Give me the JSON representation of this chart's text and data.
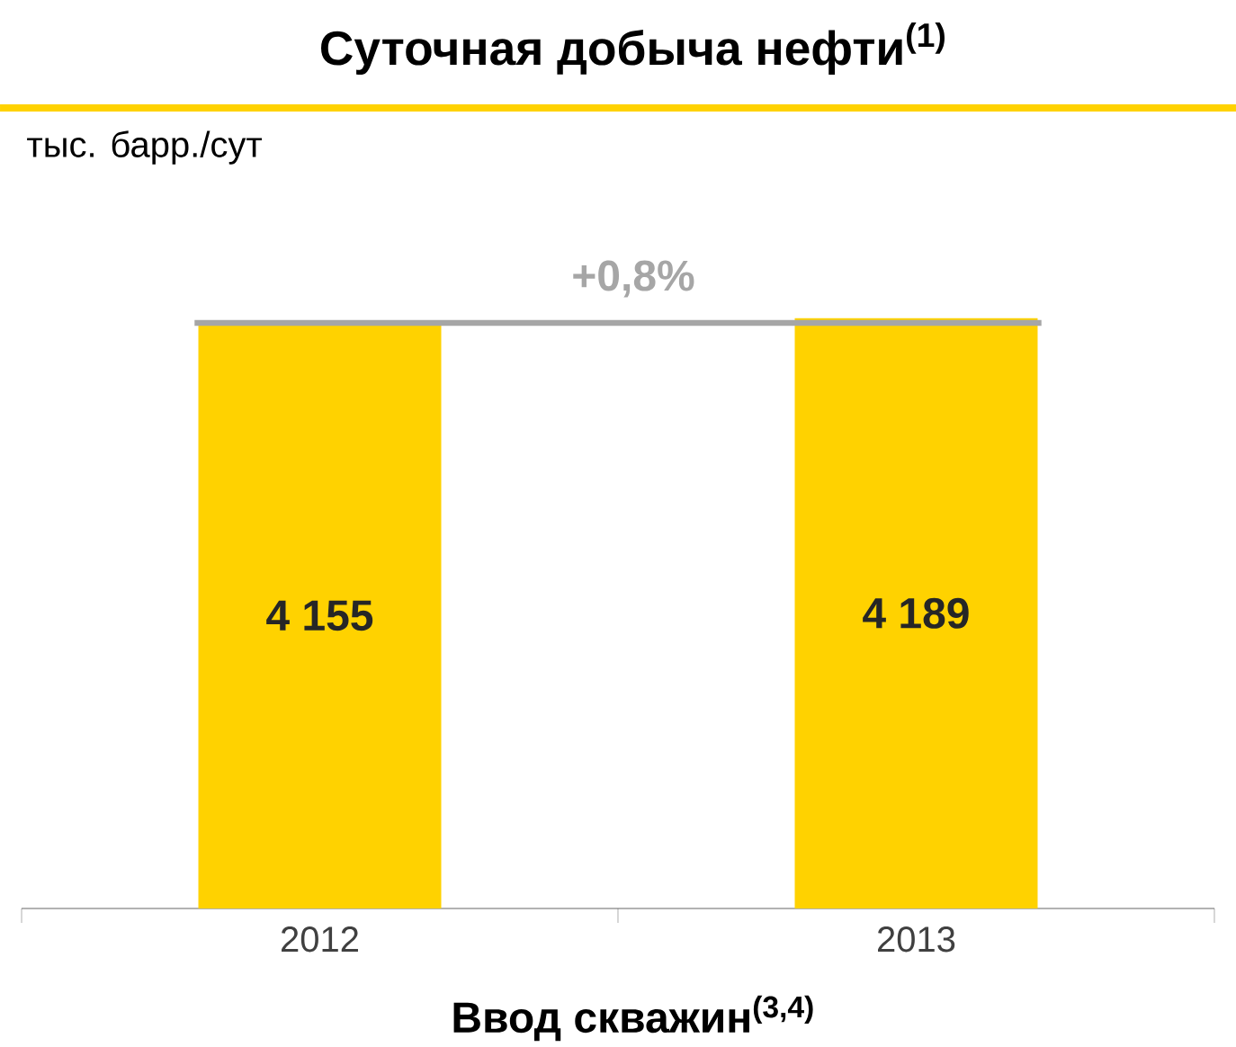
{
  "chart_data": {
    "type": "bar",
    "title": "Суточная добыча нефти$^{(1)}$",
    "ylabel": "тыс. барр./сут",
    "categories": [
      "2012",
      "2013"
    ],
    "values": [
      4155,
      4189
    ],
    "value_labels": [
      "4 155",
      "4 189"
    ],
    "color": "#ffd200",
    "ref_lines": [
      {
        "axis": "y",
        "value": 4155,
        "color": "#a6a6a6"
      }
    ],
    "annotations": [
      "+0,8%",
      "Ввод скважин$^{(3,4)}$"
    ]
  }
}
